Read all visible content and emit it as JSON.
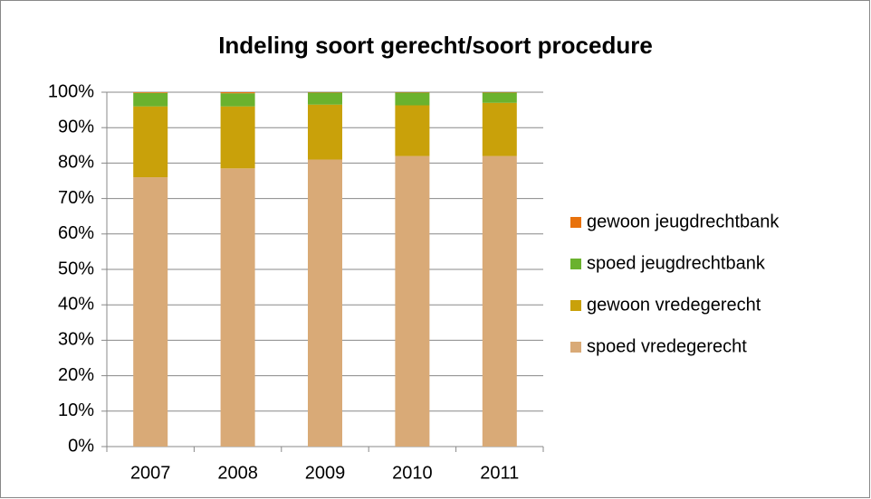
{
  "chart_data": {
    "type": "stacked_bar",
    "title": "Indeling soort gerecht/soort procedure",
    "categories": [
      "2007",
      "2008",
      "2009",
      "2010",
      "2011"
    ],
    "series": [
      {
        "name": "spoed vredegerecht",
        "color": "#d9aa77",
        "values": [
          76,
          78.5,
          81,
          82,
          82
        ]
      },
      {
        "name": "gewoon vredegerecht",
        "color": "#c9a10a",
        "values": [
          20,
          17.5,
          15.5,
          14.3,
          15
        ]
      },
      {
        "name": "spoed jeugdrechtbank",
        "color": "#6ab22e",
        "values": [
          3.8,
          3.7,
          3.4,
          3.6,
          2.9
        ]
      },
      {
        "name": "gewoon jeugdrechtbank",
        "color": "#e8720c",
        "values": [
          0.2,
          0.3,
          0.1,
          0.1,
          0.1
        ]
      }
    ],
    "ylim": [
      0,
      100
    ],
    "yticks": [
      {
        "value": 0,
        "label": "0%"
      },
      {
        "value": 10,
        "label": "10%"
      },
      {
        "value": 20,
        "label": "20%"
      },
      {
        "value": 30,
        "label": "30%"
      },
      {
        "value": 40,
        "label": "40%"
      },
      {
        "value": 50,
        "label": "50%"
      },
      {
        "value": 60,
        "label": "60%"
      },
      {
        "value": 70,
        "label": "70%"
      },
      {
        "value": 80,
        "label": "80%"
      },
      {
        "value": 90,
        "label": "90%"
      },
      {
        "value": 100,
        "label": "100%"
      }
    ],
    "grid": true,
    "legend": "right"
  }
}
